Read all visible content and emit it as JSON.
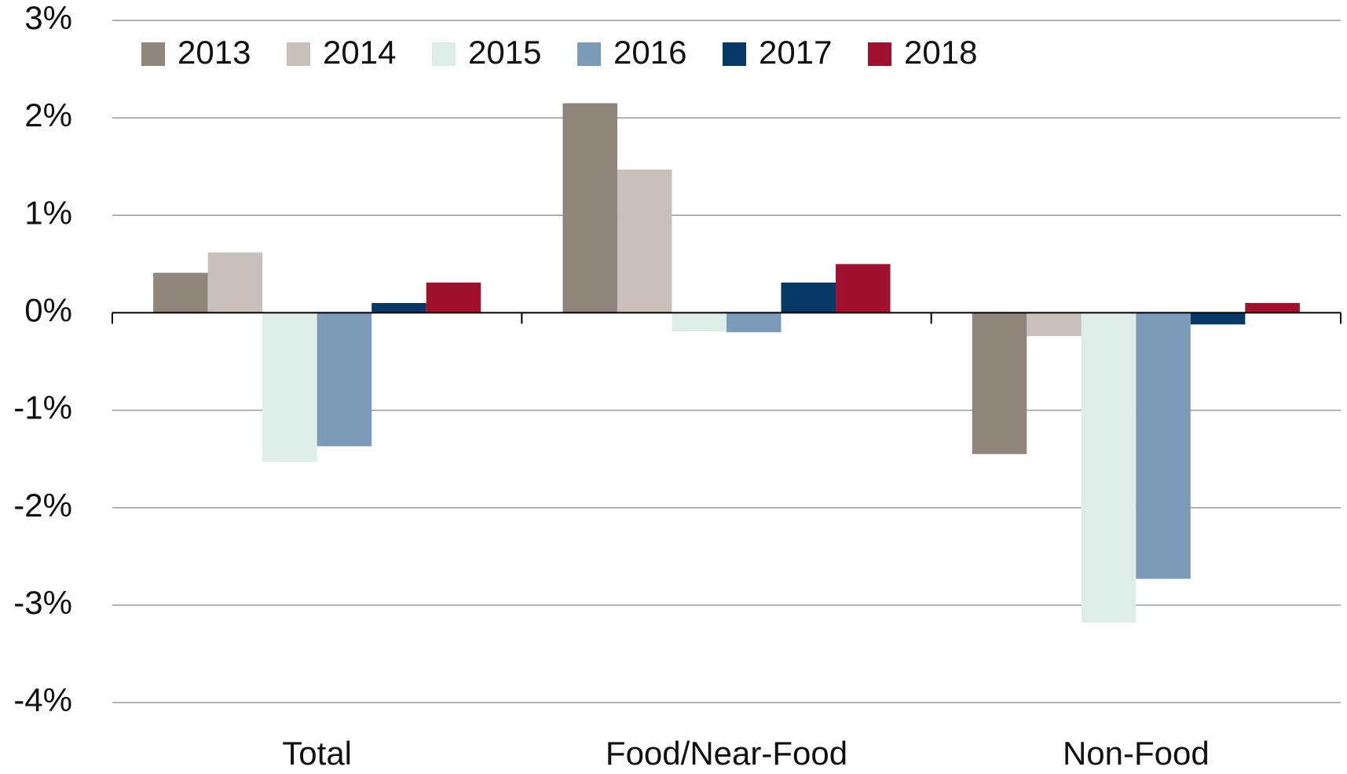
{
  "chart_data": {
    "type": "bar",
    "categories": [
      "Total",
      "Food/Near-Food",
      "Non-Food"
    ],
    "series": [
      {
        "name": "2013",
        "color": "#8f857b",
        "values": [
          0.41,
          2.15,
          -1.45
        ]
      },
      {
        "name": "2014",
        "color": "#c8c1bb",
        "values": [
          0.62,
          1.47,
          -0.24
        ]
      },
      {
        "name": "2015",
        "color": "#ddeee8",
        "values": [
          -1.53,
          -0.19,
          -3.18
        ]
      },
      {
        "name": "2016",
        "color": "#7b9bb8",
        "values": [
          -1.37,
          -0.2,
          -2.73
        ]
      },
      {
        "name": "2017",
        "color": "#063966",
        "values": [
          0.1,
          0.31,
          -0.12
        ]
      },
      {
        "name": "2018",
        "color": "#a0112e",
        "values": [
          0.31,
          0.5,
          0.1
        ]
      }
    ],
    "ylim": [
      -4,
      3
    ],
    "yticks": [
      {
        "value": -4,
        "label": "-4%"
      },
      {
        "value": -3,
        "label": "-3%"
      },
      {
        "value": -2,
        "label": "-2%"
      },
      {
        "value": -1,
        "label": "-1%"
      },
      {
        "value": 0,
        "label": "0%"
      },
      {
        "value": 1,
        "label": "1%"
      },
      {
        "value": 2,
        "label": "2%"
      },
      {
        "value": 3,
        "label": "3%"
      }
    ],
    "grid": true,
    "legend": "top-left"
  }
}
